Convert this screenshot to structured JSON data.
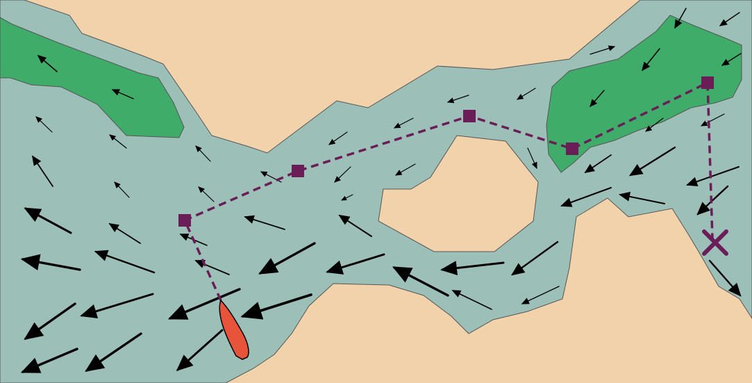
{
  "colors": {
    "land": "#f2d2aa",
    "water": "#9cbfb8",
    "vegetation": "#3fac6a",
    "route": "#6b1d57",
    "boat": "#e8543a",
    "current_arrow": "#000000"
  },
  "icons": {
    "boat": "boat-icon",
    "waypoint": "square-waypoint-icon",
    "destination": "x-marker-icon",
    "current": "arrow-icon"
  },
  "waypoint_count": 5
}
